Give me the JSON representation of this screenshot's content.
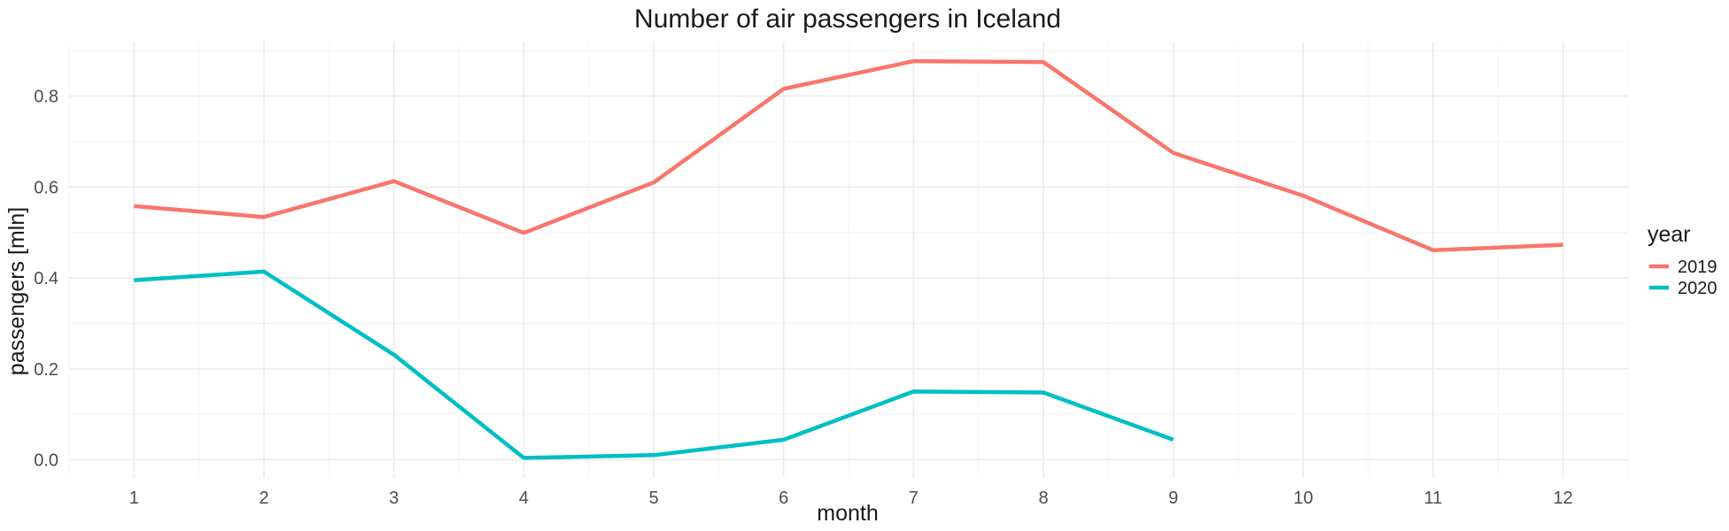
{
  "chart_data": {
    "type": "line",
    "title": "Number of air passengers in Iceland",
    "xlabel": "month",
    "ylabel": "passengers [mln]",
    "x": [
      1,
      2,
      3,
      4,
      5,
      6,
      7,
      8,
      9,
      10,
      11,
      12
    ],
    "xlim": [
      0.5,
      12.5
    ],
    "ylim": [
      -0.04,
      0.92
    ],
    "yticks": [
      0.0,
      0.2,
      0.4,
      0.6,
      0.8
    ],
    "ytick_labels": [
      "0.0",
      "0.2",
      "0.4",
      "0.6",
      "0.8"
    ],
    "grid": true,
    "legend": {
      "title": "year",
      "position": "right"
    },
    "series": [
      {
        "name": "2019",
        "color": "#F8766D",
        "values": [
          0.558,
          0.534,
          0.613,
          0.499,
          0.61,
          0.816,
          0.877,
          0.875,
          0.675,
          0.581,
          0.461,
          0.473
        ]
      },
      {
        "name": "2020",
        "color": "#00BFC4",
        "values": [
          0.395,
          0.414,
          0.231,
          0.004,
          0.01,
          0.044,
          0.15,
          0.148,
          0.044,
          null,
          null,
          null
        ]
      }
    ]
  }
}
